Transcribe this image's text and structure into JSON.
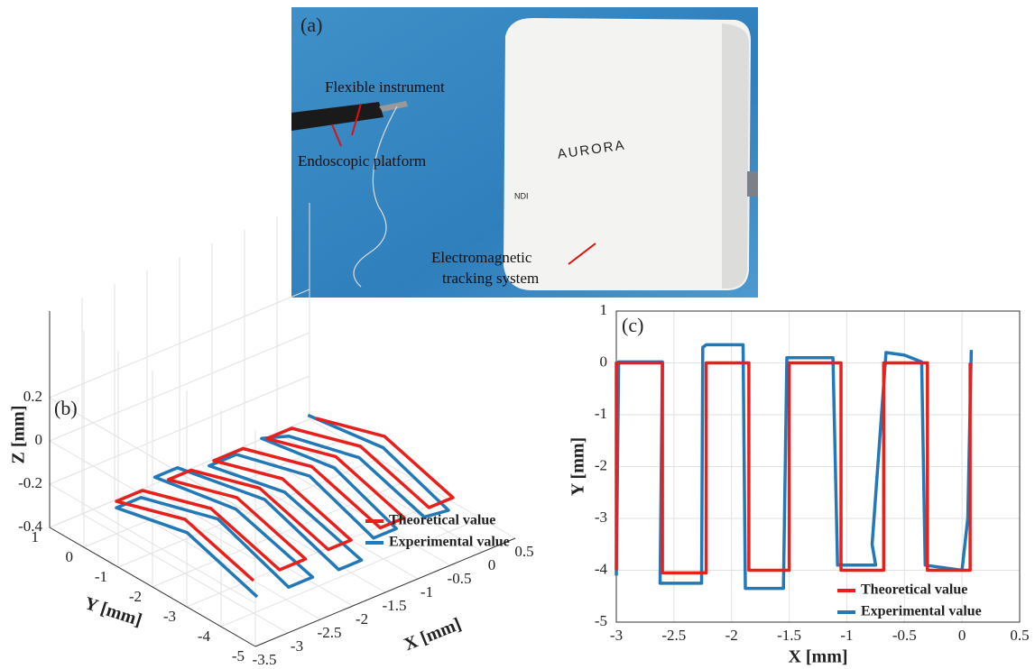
{
  "panel_a": {
    "label": "(a)",
    "flexible": "Flexible instrument",
    "endoscopic": "Endoscopic platform",
    "em_line1": "Electromagnetic",
    "em_line2": "tracking system",
    "brand": "AURORA",
    "maker": "NDI"
  },
  "chart_data": [
    {
      "type": "line3d",
      "label": "(b)",
      "xlabel": "X [mm]",
      "ylabel": "Y [mm]",
      "zlabel": "Z [mm]",
      "xlim": [
        -3.5,
        0.5
      ],
      "ylim": [
        -5,
        1
      ],
      "zlim": [
        -0.4,
        0.6
      ],
      "xticks": [
        -3.5,
        -3,
        -2.5,
        -2,
        -1.5,
        -1,
        -0.5,
        0,
        0.5
      ],
      "yticks": [
        -5,
        -4,
        -3,
        -2,
        -1,
        0,
        1
      ],
      "zticks": [
        -0.4,
        -0.2,
        0,
        0.2
      ],
      "grid": true,
      "series": [
        {
          "name": "Theoretical value",
          "color": "#e8201c",
          "x": [
            -3,
            -3,
            -3,
            -2.6,
            -2.6,
            -2.6,
            -2.2,
            -2.2,
            -2.2,
            -1.85,
            -1.85,
            -1.85,
            -1.5,
            -1.5,
            -1.5,
            -1.05,
            -1.05,
            -1.05,
            -0.68,
            -0.68,
            -0.68,
            -0.3,
            -0.3,
            -0.3,
            0.07,
            0.07,
            0.07
          ],
          "y": [
            -4,
            -2,
            0,
            0,
            -2,
            -4,
            -4,
            -2,
            0,
            0,
            -2,
            -4,
            -4,
            -2,
            0,
            0,
            -2,
            -4,
            -4,
            -2,
            0,
            0,
            -2,
            -4,
            -4,
            -2,
            0
          ],
          "z": [
            -0.25,
            -0.15,
            -0.25,
            -0.25,
            -0.15,
            -0.25,
            -0.25,
            -0.15,
            -0.25,
            -0.25,
            -0.15,
            -0.25,
            -0.25,
            -0.15,
            -0.25,
            -0.25,
            -0.15,
            -0.25,
            -0.25,
            -0.15,
            -0.25,
            -0.25,
            -0.15,
            -0.25,
            -0.25,
            -0.15,
            -0.25
          ]
        },
        {
          "name": "Experimental value",
          "color": "#2378b8",
          "x": [
            -3.05,
            -3.02,
            -3,
            -2.62,
            -2.6,
            -2.62,
            -2.25,
            -2.22,
            -2.25,
            -1.9,
            -1.88,
            -1.9,
            -1.55,
            -1.52,
            -1.52,
            -1.1,
            -1.08,
            -1.1,
            -0.75,
            -0.7,
            -0.66,
            -0.35,
            -0.32,
            -0.32,
            0,
            0.05,
            0.08
          ],
          "y": [
            -4.2,
            -2.1,
            0,
            0,
            -2.2,
            -4.3,
            -4.3,
            -2,
            0.3,
            0.3,
            -2.2,
            -4.4,
            -4.4,
            -2.1,
            0.1,
            0.1,
            -2,
            -3.9,
            -3.9,
            -2,
            0.2,
            0,
            -2,
            -3.9,
            -4,
            -2,
            0.25
          ],
          "z": [
            -0.3,
            -0.2,
            -0.28,
            -0.28,
            -0.18,
            -0.3,
            -0.3,
            -0.2,
            -0.26,
            -0.26,
            -0.18,
            -0.3,
            -0.3,
            -0.2,
            -0.28,
            -0.28,
            -0.19,
            -0.3,
            -0.3,
            -0.2,
            -0.27,
            -0.28,
            -0.2,
            -0.3,
            -0.3,
            -0.2,
            -0.26
          ]
        }
      ]
    },
    {
      "type": "line",
      "label": "(c)",
      "xlabel": "X [mm]",
      "ylabel": "Y [mm]",
      "xlim": [
        -3,
        0.5
      ],
      "ylim": [
        -5,
        1
      ],
      "xticks": [
        -3,
        -2.5,
        -2,
        -1.5,
        -1,
        -0.5,
        0,
        0.5
      ],
      "yticks": [
        -5,
        -4,
        -3,
        -2,
        -1,
        0,
        1
      ],
      "grid": true,
      "series": [
        {
          "name": "Theoretical value",
          "color": "#e8201c",
          "x": [
            -3,
            -3,
            -2.6,
            -2.6,
            -2.22,
            -2.22,
            -1.85,
            -1.85,
            -1.5,
            -1.5,
            -1.05,
            -1.05,
            -0.68,
            -0.68,
            -0.3,
            -0.3,
            0.07,
            0.07
          ],
          "values": [
            -4,
            0,
            0,
            -4.05,
            -4.05,
            0,
            0,
            -4,
            -4,
            0,
            0,
            -4,
            -4,
            0,
            0,
            -4,
            -4,
            0
          ]
        },
        {
          "name": "Experimental value",
          "color": "#2378b8",
          "x": [
            -3,
            -2.98,
            -2.6,
            -2.62,
            -2.26,
            -2.25,
            -2.22,
            -1.9,
            -1.88,
            -1.55,
            -1.52,
            -1.12,
            -1.08,
            -0.75,
            -0.78,
            -0.66,
            -0.5,
            -0.35,
            -0.32,
            0,
            0.05,
            0.08
          ],
          "values": [
            -4.1,
            0.02,
            0.02,
            -4.25,
            -4.25,
            0.3,
            0.35,
            0.35,
            -4.35,
            -4.35,
            0.1,
            0.1,
            -3.9,
            -3.9,
            -3.5,
            0.2,
            0.15,
            0.02,
            -3.9,
            -4,
            -3,
            0.25
          ]
        }
      ]
    }
  ]
}
